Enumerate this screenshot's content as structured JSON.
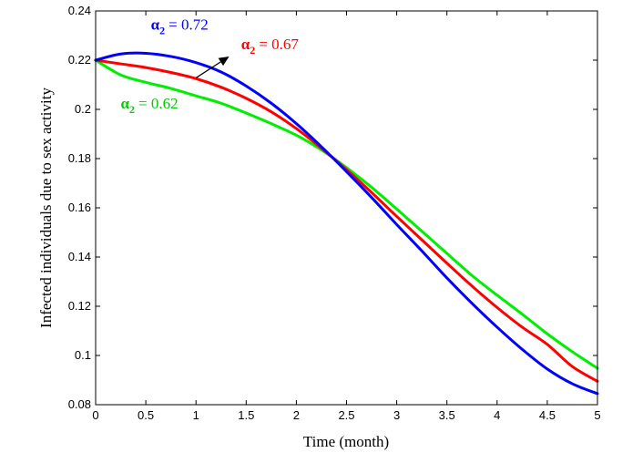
{
  "chart_data": {
    "type": "line",
    "title": "",
    "xlabel": "Time (month)",
    "ylabel": "Infected individuals due to sex activity",
    "xlim": [
      0,
      5
    ],
    "ylim": [
      0.08,
      0.24
    ],
    "xticks": [
      0,
      0.5,
      1,
      1.5,
      2,
      2.5,
      3,
      3.5,
      4,
      4.5,
      5
    ],
    "xtick_labels": [
      "0",
      "0.5",
      "1",
      "1.5",
      "2",
      "2.5",
      "3",
      "3.5",
      "4",
      "4.5",
      "5"
    ],
    "yticks": [
      0.08,
      0.1,
      0.12,
      0.14,
      0.16,
      0.18,
      0.2,
      0.22,
      0.24
    ],
    "ytick_labels": [
      "0.08",
      "0.1",
      "0.12",
      "0.14",
      "0.16",
      "0.18",
      "0.2",
      "0.22",
      "0.24"
    ],
    "grid": false,
    "x": [
      0,
      0.25,
      0.5,
      0.75,
      1,
      1.25,
      1.5,
      1.75,
      2,
      2.25,
      2.5,
      2.75,
      3,
      3.25,
      3.5,
      3.75,
      4,
      4.25,
      4.5,
      4.75,
      5
    ],
    "series": [
      {
        "color": "#0000ff",
        "values": [
          0.22,
          0.2225,
          0.2228,
          0.2215,
          0.219,
          0.2152,
          0.2095,
          0.2025,
          0.1942,
          0.1848,
          0.1747,
          0.1642,
          0.1532,
          0.1425,
          0.1315,
          0.1212,
          0.1115,
          0.1025,
          0.0945,
          0.0885,
          0.0845
        ]
      },
      {
        "color": "#ff0000",
        "values": [
          0.22,
          0.2185,
          0.217,
          0.215,
          0.2125,
          0.209,
          0.2045,
          0.199,
          0.1922,
          0.1842,
          0.1755,
          0.1662,
          0.1565,
          0.147,
          0.1375,
          0.1282,
          0.1195,
          0.1115,
          0.1045,
          0.0955,
          0.0895
        ]
      },
      {
        "color": "#00ee00",
        "values": [
          0.22,
          0.214,
          0.211,
          0.2085,
          0.2055,
          0.2025,
          0.1985,
          0.1942,
          0.1895,
          0.1835,
          0.1763,
          0.1683,
          0.1595,
          0.1505,
          0.1415,
          0.1325,
          0.1245,
          0.1168,
          0.1088,
          0.1015,
          0.0948
        ]
      }
    ],
    "annotations": [
      {
        "symbol": "α",
        "sub": "2",
        "value": "= 0.72",
        "color": "#0000ff",
        "x": 0.55,
        "y": 0.2325
      },
      {
        "symbol": "α",
        "sub": "2",
        "value": "= 0.67",
        "color": "#ff0000",
        "x": 1.45,
        "y": 0.2245
      },
      {
        "symbol": "α",
        "sub": "2",
        "value": "= 0.62",
        "color": "#00cc00",
        "x": 0.25,
        "y": 0.2004
      }
    ],
    "arrow": {
      "from": [
        1.0,
        0.2128
      ],
      "to": [
        1.33,
        0.2215
      ],
      "color": "#000000"
    }
  }
}
